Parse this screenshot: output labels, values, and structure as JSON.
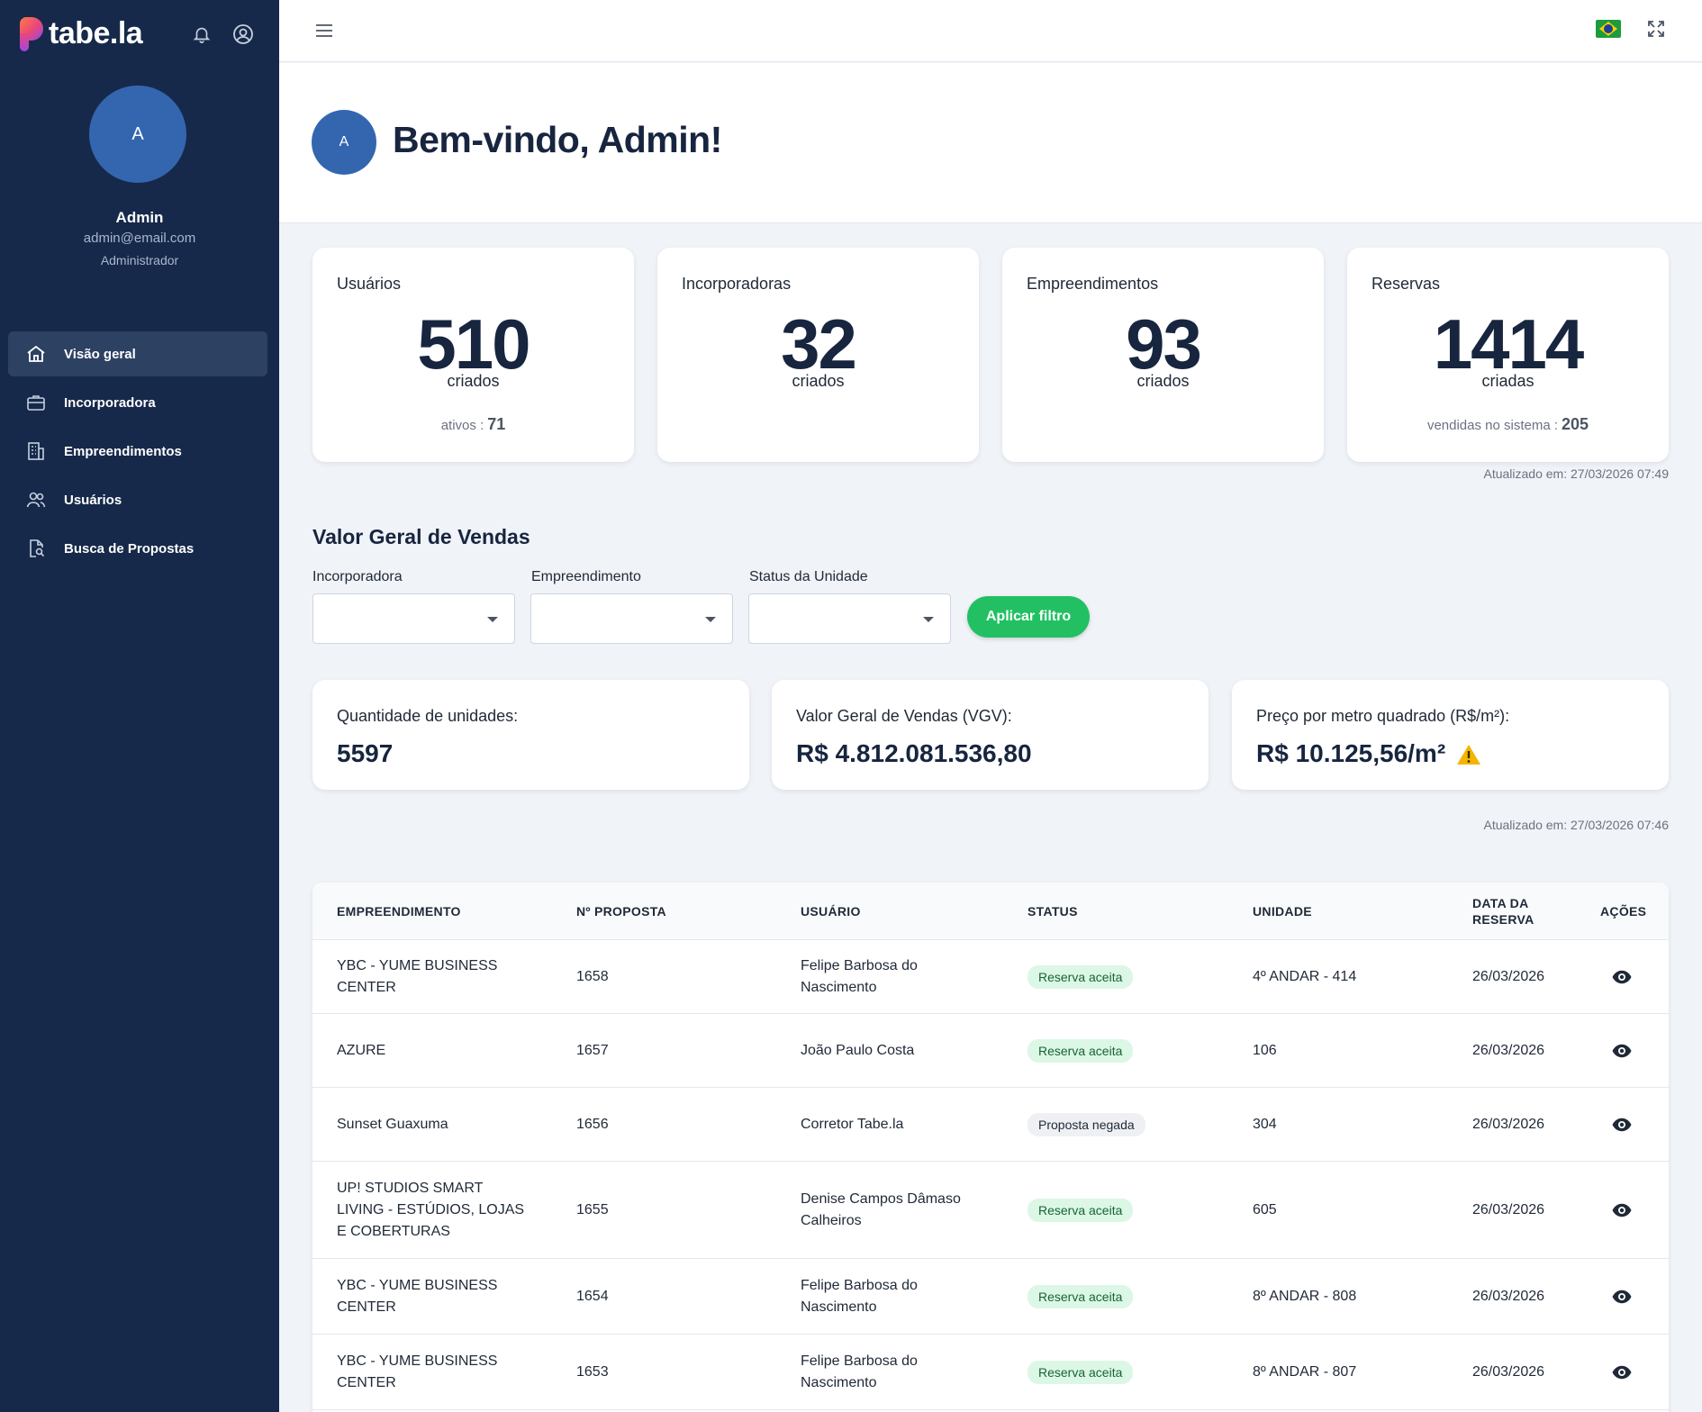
{
  "brand": {
    "name": "tabe.la"
  },
  "user": {
    "initial": "A",
    "name": "Admin",
    "email": "admin@email.com",
    "role": "Administrador"
  },
  "nav": [
    {
      "label": "Visão geral",
      "icon": "home-icon",
      "active": true
    },
    {
      "label": "Incorporadora",
      "icon": "briefcase-icon"
    },
    {
      "label": "Empreendimentos",
      "icon": "building-icon"
    },
    {
      "label": "Usuários",
      "icon": "users-icon"
    },
    {
      "label": "Busca de Propostas",
      "icon": "document-search-icon"
    }
  ],
  "welcome": {
    "title": "Bem-vindo, Admin!"
  },
  "stats": [
    {
      "label": "Usuários",
      "value": "510",
      "sub": "criados",
      "foot_label": "ativos :",
      "foot_value": "71"
    },
    {
      "label": "Incorporadoras",
      "value": "32",
      "sub": "criados"
    },
    {
      "label": "Empreendimentos",
      "value": "93",
      "sub": "criados"
    },
    {
      "label": "Reservas",
      "value": "1414",
      "sub": "criadas",
      "foot_label": "vendidas no sistema :",
      "foot_value": "205"
    }
  ],
  "stats_updated": "Atualizado em: 27/03/2026 07:49",
  "vgv": {
    "title": "Valor Geral de Vendas",
    "filters": [
      {
        "label": "Incorporadora",
        "value": ""
      },
      {
        "label": "Empreendimento",
        "value": ""
      },
      {
        "label": "Status da Unidade",
        "value": ""
      }
    ],
    "apply_label": "Aplicar filtro",
    "kpis": [
      {
        "label": "Quantidade de unidades:",
        "value": "5597"
      },
      {
        "label": "Valor Geral de Vendas (VGV):",
        "value": "R$ 4.812.081.536,80"
      },
      {
        "label": "Preço por metro quadrado (R$/m²):",
        "value": "R$ 10.125,56/m²",
        "warning": true
      }
    ],
    "updated": "Atualizado em: 27/03/2026 07:46"
  },
  "table": {
    "headers": [
      "EMPREENDIMENTO",
      "Nº PROPOSTA",
      "USUÁRIO",
      "STATUS",
      "UNIDADE",
      "DATA DA RESERVA",
      "AÇÕES"
    ],
    "rows": [
      {
        "empreendimento": "YBC - YUME BUSINESS CENTER",
        "proposta": "1658",
        "usuario": "Felipe Barbosa do Nascimento",
        "status": "Reserva aceita",
        "unidade": "4º ANDAR - 414",
        "data": "26/03/2026"
      },
      {
        "empreendimento": "AZURE",
        "proposta": "1657",
        "usuario": "João Paulo Costa",
        "status": "Reserva aceita",
        "unidade": "106",
        "data": "26/03/2026"
      },
      {
        "empreendimento": "Sunset Guaxuma",
        "proposta": "1656",
        "usuario": "Corretor Tabe.la",
        "status": "Proposta negada",
        "unidade": "304",
        "data": "26/03/2026"
      },
      {
        "empreendimento": "UP! STUDIOS SMART LIVING - ESTÚDIOS, LOJAS E COBERTURAS",
        "proposta": "1655",
        "usuario": "Denise Campos Dâmaso Calheiros",
        "status": "Reserva aceita",
        "unidade": "605",
        "data": "26/03/2026"
      },
      {
        "empreendimento": "YBC - YUME BUSINESS CENTER",
        "proposta": "1654",
        "usuario": "Felipe Barbosa do Nascimento",
        "status": "Reserva aceita",
        "unidade": "8º ANDAR - 808",
        "data": "26/03/2026"
      },
      {
        "empreendimento": "YBC - YUME BUSINESS CENTER",
        "proposta": "1653",
        "usuario": "Felipe Barbosa do Nascimento",
        "status": "Reserva aceita",
        "unidade": "8º ANDAR - 807",
        "data": "26/03/2026"
      }
    ]
  },
  "colors": {
    "sidebar": "#16294a",
    "accent": "#3466b0",
    "success": "#22c063"
  }
}
